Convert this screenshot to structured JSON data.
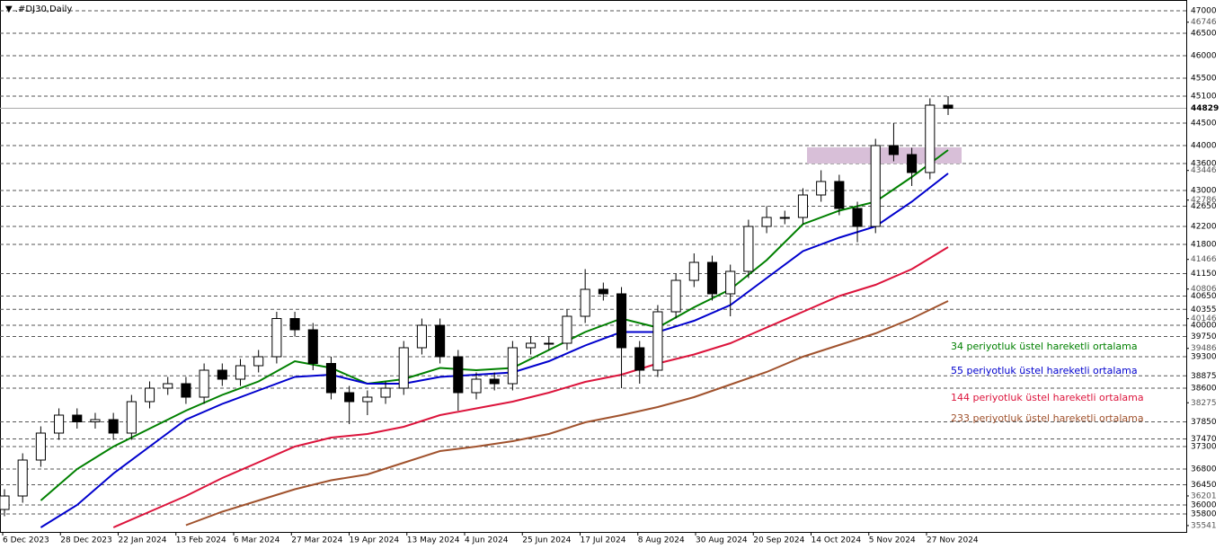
{
  "chart_data": {
    "type": "candlestick",
    "title": "▼ .#DJ30,Daily",
    "ylim": [
      35460,
      47240
    ],
    "x_labels": [
      "6 Dec 2023",
      "28 Dec 2023",
      "22 Jan 2024",
      "13 Feb 2024",
      "6 Mar 2024",
      "27 Mar 2024",
      "19 Apr 2024",
      "13 May 2024",
      "4 Jun 2024",
      "25 Jun 2024",
      "17 Jul 2024",
      "8 Aug 2024",
      "30 Aug 2024",
      "20 Sep 2024",
      "14 Oct 2024",
      "5 Nov 2024",
      "27 Nov 2024"
    ],
    "levels": [
      47000,
      46500,
      46000,
      45500,
      45100,
      44500,
      44000,
      43600,
      43000,
      42650,
      42200,
      41800,
      41150,
      40650,
      40355,
      40000,
      39750,
      39300,
      38875,
      38600,
      37850,
      37470,
      37300,
      36800,
      36450,
      36000,
      35800
    ],
    "yticks": [
      46746,
      43446,
      42786,
      41466,
      40806,
      40146,
      39486,
      38275,
      36201,
      35541
    ],
    "current_price": 44829,
    "zone": [
      43600,
      43960
    ],
    "zone_color": "#d8bfd8",
    "open": [
      35900,
      36200,
      37000,
      37600,
      38000,
      37850,
      37900,
      37600,
      38300,
      38600,
      38700,
      38400,
      39000,
      38800,
      39100,
      39300,
      40150,
      39900,
      39150,
      38500,
      38300,
      38400,
      38600,
      39500,
      40000,
      39300,
      38500,
      38800,
      38700,
      39500,
      39600,
      39600,
      40200,
      40800,
      40700,
      39500,
      39000,
      40300,
      41000,
      41400,
      40700,
      41200,
      42200,
      42400,
      42400,
      42900,
      43200,
      42600,
      42200,
      44000,
      43800,
      43400,
      44900
    ],
    "high": [
      36350,
      37150,
      37750,
      38150,
      38150,
      38050,
      38050,
      38450,
      38750,
      38850,
      38850,
      39150,
      39150,
      39250,
      39450,
      40300,
      40300,
      40050,
      39300,
      38650,
      38550,
      38750,
      39650,
      40150,
      40150,
      39450,
      38950,
      38950,
      39650,
      39750,
      39750,
      40350,
      41250,
      40950,
      40850,
      39650,
      40450,
      41150,
      41600,
      41550,
      41350,
      42350,
      42650,
      42550,
      43050,
      43450,
      43350,
      42750,
      44150,
      44500,
      43950,
      45050,
      45100
    ],
    "low": [
      35750,
      36050,
      36850,
      37450,
      37700,
      37700,
      37450,
      37450,
      38150,
      38450,
      38250,
      38250,
      38650,
      38650,
      38950,
      39150,
      39750,
      39000,
      38350,
      37800,
      38000,
      38250,
      38450,
      39350,
      39150,
      38100,
      38350,
      38550,
      38550,
      39350,
      39450,
      39450,
      40050,
      40550,
      38600,
      38700,
      38850,
      40150,
      40850,
      40550,
      40200,
      41050,
      42050,
      42250,
      42250,
      42750,
      42450,
      41850,
      42050,
      43650,
      43100,
      43250,
      44680
    ],
    "close": [
      36200,
      37000,
      37600,
      38000,
      37850,
      37900,
      37600,
      38300,
      38600,
      38700,
      38400,
      39000,
      38800,
      39100,
      39300,
      40150,
      39900,
      39150,
      38500,
      38300,
      38400,
      38600,
      39500,
      40000,
      39300,
      38500,
      38800,
      38700,
      39500,
      39600,
      39600,
      40200,
      40800,
      40700,
      39500,
      39000,
      40300,
      41000,
      41400,
      40700,
      41200,
      42200,
      42400,
      42400,
      42900,
      43200,
      42600,
      42200,
      44000,
      43800,
      43400,
      44900,
      44829
    ],
    "series": [
      {
        "name": "34 periyotluk üstel hareketli ortalama",
        "color": "#008000",
        "values": [
          null,
          36100,
          36800,
          37300,
          37700,
          38100,
          38450,
          38750,
          39200,
          39050,
          38700,
          38800,
          39050,
          39000,
          39050,
          39450,
          39850,
          40150,
          39950,
          40400,
          40800,
          41450,
          42250,
          42550,
          42750,
          43300,
          43900
        ]
      },
      {
        "name": "55 periyotluk üstel hareketli ortalama",
        "color": "#0000cd",
        "values": [
          null,
          35500,
          36000,
          36700,
          37300,
          37900,
          38250,
          38550,
          38850,
          38900,
          38700,
          38700,
          38850,
          38900,
          38950,
          39200,
          39550,
          39850,
          39850,
          40100,
          40450,
          41050,
          41650,
          41950,
          42200,
          42750,
          43380
        ]
      },
      {
        "name": "144 periyotluk üstel hareketli ortalama",
        "color": "#dc143c",
        "values": [
          null,
          null,
          null,
          35500,
          35850,
          36200,
          36600,
          36950,
          37300,
          37500,
          37580,
          37740,
          38000,
          38150,
          38300,
          38500,
          38740,
          38900,
          39150,
          39350,
          39600,
          39950,
          40300,
          40650,
          40900,
          41250,
          41740
        ]
      },
      {
        "name": "233 periyotluk üstel hareketli ortalama",
        "color": "#a0522d",
        "values": [
          null,
          null,
          null,
          null,
          null,
          35550,
          35850,
          36100,
          36350,
          36550,
          36680,
          36940,
          37200,
          37300,
          37420,
          37580,
          37840,
          38000,
          38180,
          38400,
          38680,
          38960,
          39300,
          39560,
          39820,
          40150,
          40540
        ]
      }
    ]
  }
}
